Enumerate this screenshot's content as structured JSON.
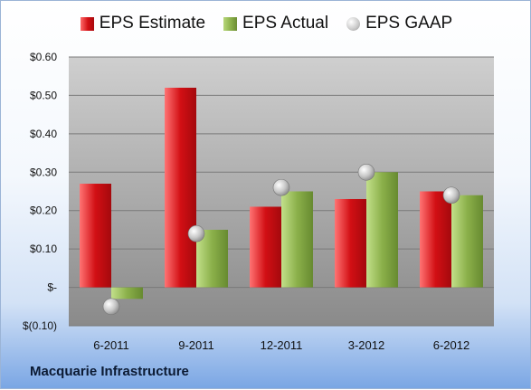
{
  "legend": {
    "estimate": "EPS Estimate",
    "actual": "EPS Actual",
    "gaap": "EPS GAAP"
  },
  "footer": "Macquarie Infrastructure",
  "chart_data": {
    "type": "bar",
    "categories": [
      "6-2011",
      "9-2011",
      "12-2011",
      "3-2012",
      "6-2012"
    ],
    "series": [
      {
        "name": "EPS Estimate",
        "values": [
          0.27,
          0.52,
          0.21,
          0.23,
          0.25
        ],
        "color": "#d20f14"
      },
      {
        "name": "EPS Actual",
        "values": [
          -0.03,
          0.15,
          0.25,
          0.3,
          0.24
        ],
        "color": "#8bb04a"
      },
      {
        "name": "EPS GAAP",
        "values": [
          -0.05,
          0.14,
          0.26,
          0.3,
          0.24
        ],
        "color": "#c8c8c8",
        "marker": "circle"
      }
    ],
    "ylim": [
      -0.1,
      0.6
    ],
    "yticks": [
      -0.1,
      0,
      0.1,
      0.2,
      0.3,
      0.4,
      0.5,
      0.6
    ],
    "ytick_labels": [
      "$(0.10)",
      "$-",
      "$0.10",
      "$0.20",
      "$0.30",
      "$0.40",
      "$0.50",
      "$0.60"
    ],
    "grid": true,
    "legend_position": "top"
  }
}
